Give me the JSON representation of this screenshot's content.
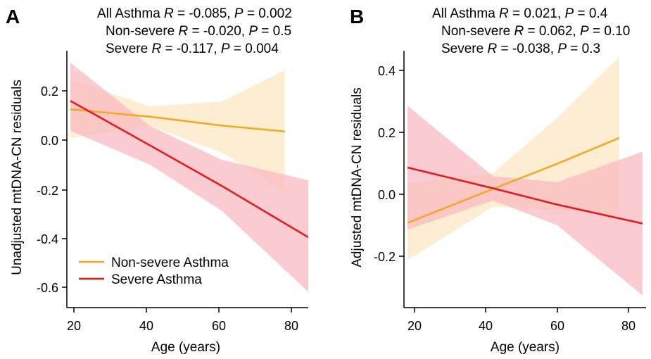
{
  "chart_data": [
    {
      "panel": "A",
      "type": "line",
      "xlabel": "Age (years)",
      "ylabel": "Unadjusted mtDNA-CN residuals",
      "xlim": [
        17,
        84
      ],
      "ylim": [
        -0.7,
        0.36
      ],
      "xticks": [
        "20",
        "40",
        "60",
        "80"
      ],
      "yticks": [
        "0.2",
        "0.0",
        "-0.2",
        "-0.4",
        "-0.6"
      ],
      "stats": [
        {
          "group": "All Asthma ",
          "r": " = -0.085, ",
          "p": " = 0.002"
        },
        {
          "group": "Non-severe ",
          "r": " = -0.020, ",
          "p": " = 0.5"
        },
        {
          "group": "Severe ",
          "r": " = -0.117, ",
          "p": " = 0.004"
        }
      ],
      "legend": {
        "position": "bottom-left",
        "entries": [
          "Non-severe Asthma",
          "Severe Asthma"
        ]
      },
      "series": [
        {
          "name": "Non-severe Asthma",
          "color": "#F5A623",
          "band_color": "#FCE7C3",
          "x": [
            18,
            40,
            60,
            77.5
          ],
          "y": [
            0.118,
            0.088,
            0.051,
            0.027
          ],
          "lower": [
            0.0,
            0.05,
            -0.06,
            -0.22
          ],
          "upper": [
            0.24,
            0.13,
            0.15,
            0.28
          ]
        },
        {
          "name": "Severe Asthma",
          "color": "#E8161B",
          "band_color": "#F8B9C0",
          "x": [
            18,
            40,
            60,
            84
          ],
          "y": [
            0.153,
            -0.03,
            -0.198,
            -0.41
          ],
          "lower": [
            0.03,
            -0.11,
            -0.3,
            -0.635
          ],
          "upper": [
            0.31,
            0.05,
            -0.09,
            -0.175
          ]
        }
      ]
    },
    {
      "panel": "B",
      "type": "line",
      "xlabel": "Age (years)",
      "ylabel": "Adjusted mtDNA-CN residuals",
      "xlim": [
        17,
        85
      ],
      "ylim": [
        -0.37,
        0.47
      ],
      "xticks": [
        "20",
        "40",
        "60",
        "80"
      ],
      "yticks": [
        "0.4",
        "0.2",
        "0.0",
        "-0.2"
      ],
      "stats": [
        {
          "group": "All Asthma ",
          "r": " = 0.021, ",
          "p": " = 0.4"
        },
        {
          "group": "Non-severe ",
          "r": " = 0.062, ",
          "p": " = 0.10"
        },
        {
          "group": "Severe ",
          "r": " = -0.038, ",
          "p": " = 0.3"
        }
      ],
      "series": [
        {
          "name": "Non-severe Asthma",
          "color": "#F5A623",
          "band_color": "#FCE7C3",
          "x": [
            18,
            42,
            60,
            77.5
          ],
          "y": [
            -0.093,
            0.018,
            0.1,
            0.185
          ],
          "lower": [
            -0.215,
            -0.04,
            -0.05,
            -0.07
          ],
          "upper": [
            0.035,
            0.07,
            0.25,
            0.45
          ]
        },
        {
          "name": "Severe Asthma",
          "color": "#E8161B",
          "band_color": "#F8B9C0",
          "x": [
            18,
            42,
            60,
            84
          ],
          "y": [
            0.088,
            0.02,
            -0.033,
            -0.095
          ],
          "lower": [
            -0.115,
            -0.02,
            -0.1,
            -0.33
          ],
          "upper": [
            0.29,
            0.06,
            0.04,
            0.14
          ]
        }
      ]
    }
  ]
}
